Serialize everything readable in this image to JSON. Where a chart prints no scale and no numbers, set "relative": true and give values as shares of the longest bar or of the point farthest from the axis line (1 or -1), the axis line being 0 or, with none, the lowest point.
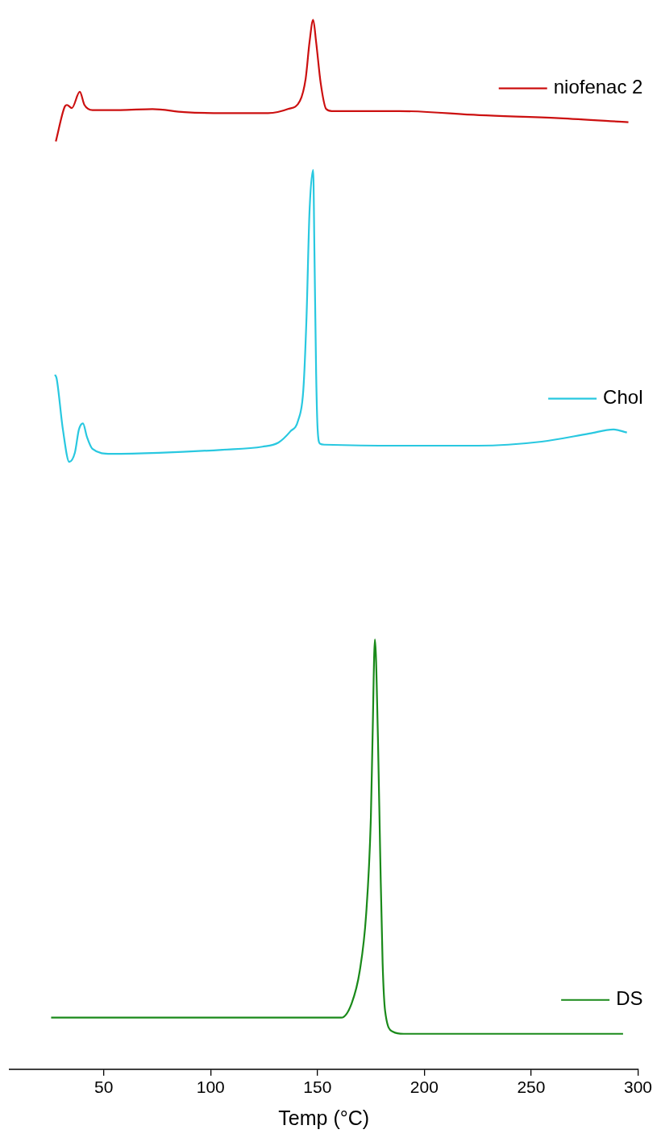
{
  "chart_data": {
    "type": "line",
    "relative": true,
    "xlabel": "Temp (°C)",
    "xlim": [
      6,
      300
    ],
    "xticks": [
      50,
      100,
      150,
      200,
      250,
      300
    ],
    "grid": false,
    "legend": "right",
    "marker": "none",
    "line_style": "solid",
    "series": [
      {
        "name": "niofenac 2",
        "color": "#cc1010",
        "x": [
          27.6,
          31.7,
          32.8,
          35.1,
          38.8,
          41,
          44.8,
          57.8,
          72.8,
          87.7,
          106,
          126.9,
          136.2,
          141.8,
          144.5,
          146.3,
          148,
          149.4,
          151.5,
          154.1,
          156.7,
          188.4,
          225.7,
          263,
          295.5
        ],
        "values": [
          0.88,
          0.914,
          0.916,
          0.913,
          0.929,
          0.916,
          0.911,
          0.911,
          0.912,
          0.909,
          0.908,
          0.908,
          0.912,
          0.92,
          0.942,
          0.978,
          1.0,
          0.978,
          0.938,
          0.912,
          0.91,
          0.91,
          0.906,
          0.903,
          0.899
        ]
      },
      {
        "name": "Chol",
        "color": "#29c8e0",
        "x": [
          27.2,
          28,
          30.9,
          33.9,
          36.5,
          38.4,
          40.3,
          42.1,
          44.7,
          53.4,
          75.8,
          105.6,
          124.3,
          131.7,
          137.3,
          141,
          143.4,
          144.9,
          146.3,
          148,
          148.6,
          149.4,
          150.1,
          151.2,
          153.4,
          187.7,
          225,
          254.9,
          277.3,
          288.5,
          294.8
        ],
        "values": [
          0.65,
          0.646,
          0.596,
          0.564,
          0.573,
          0.596,
          0.602,
          0.589,
          0.577,
          0.572,
          0.573,
          0.576,
          0.579,
          0.583,
          0.594,
          0.605,
          0.635,
          0.707,
          0.811,
          0.852,
          0.771,
          0.651,
          0.596,
          0.582,
          0.581,
          0.58,
          0.58,
          0.584,
          0.592,
          0.596,
          0.593
        ]
      },
      {
        "name": "DS",
        "color": "#1a8a1a",
        "x": [
          25.4,
          161.2,
          166,
          169.8,
          172.8,
          175,
          175.8,
          176.9,
          178.3,
          179.4,
          180.5,
          181.7,
          185.4,
          190.3,
          293
        ],
        "values": [
          0.016,
          0.016,
          0.03,
          0.062,
          0.118,
          0.213,
          0.293,
          0.389,
          0.293,
          0.174,
          0.07,
          0.022,
          0.002,
          0,
          0
        ]
      }
    ]
  }
}
